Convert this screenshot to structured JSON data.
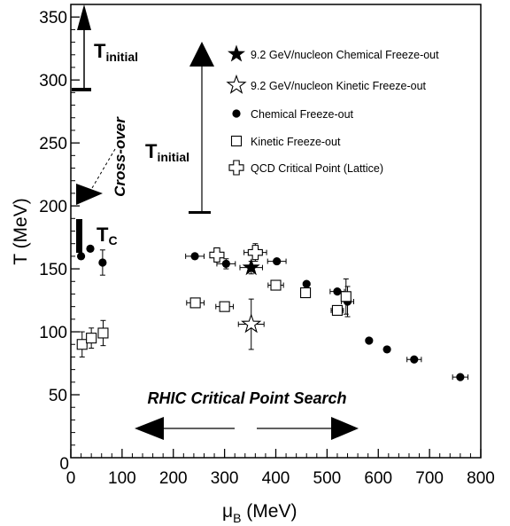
{
  "chart_data": {
    "type": "scatter",
    "xlabel": {
      "main": "μ",
      "sub": "B",
      "unit": " (MeV)"
    },
    "ylabel": "T (MeV)",
    "xlim": [
      0,
      800
    ],
    "ylim": [
      0,
      360
    ],
    "xticks": [
      "0",
      "100",
      "200",
      "300",
      "400",
      "500",
      "600",
      "700",
      "800"
    ],
    "yticks": [
      "50",
      "100",
      "150",
      "200",
      "250",
      "300",
      "350"
    ],
    "y_zero_label": "0",
    "legend": [
      {
        "label": "9.2 GeV/nucleon Chemical Freeze-out",
        "marker": "filled-star"
      },
      {
        "label": "9.2 GeV/nucleon Kinetic Freeze-out",
        "marker": "open-star"
      },
      {
        "label": "Chemical Freeze-out",
        "marker": "filled-circle"
      },
      {
        "label": "Kinetic Freeze-out",
        "marker": "open-square"
      },
      {
        "label": "QCD Critical Point (Lattice)",
        "marker": "open-cross"
      }
    ],
    "series": [
      {
        "name": "Chemical Freeze-out",
        "marker": "filled-circle",
        "points": [
          {
            "x": 20,
            "y": 160,
            "xerr": 5,
            "yerr": 0
          },
          {
            "x": 38,
            "y": 166,
            "xerr": 0,
            "yerr": 0
          },
          {
            "x": 62,
            "y": 155,
            "xerr": 0,
            "yerr": 10
          },
          {
            "x": 242,
            "y": 160,
            "xerr": 18,
            "yerr": 0
          },
          {
            "x": 303,
            "y": 154,
            "xerr": 18,
            "yerr": 4
          },
          {
            "x": 402,
            "y": 156,
            "xerr": 18,
            "yerr": 0
          },
          {
            "x": 460,
            "y": 138,
            "xerr": 0,
            "yerr": 0
          },
          {
            "x": 520,
            "y": 132,
            "xerr": 14,
            "yerr": 0
          },
          {
            "x": 540,
            "y": 124,
            "xerr": 12,
            "yerr": 12
          },
          {
            "x": 582,
            "y": 93,
            "xerr": 0,
            "yerr": 0
          },
          {
            "x": 617,
            "y": 86,
            "xerr": 0,
            "yerr": 0
          },
          {
            "x": 670,
            "y": 78,
            "xerr": 14,
            "yerr": 0
          },
          {
            "x": 760,
            "y": 64,
            "xerr": 15,
            "yerr": 0
          }
        ]
      },
      {
        "name": "Kinetic Freeze-out",
        "marker": "open-square",
        "points": [
          {
            "x": 22,
            "y": 90,
            "xerr": 0,
            "yerr": 10
          },
          {
            "x": 40,
            "y": 95,
            "xerr": 0,
            "yerr": 8
          },
          {
            "x": 63,
            "y": 99,
            "xerr": 0,
            "yerr": 10
          },
          {
            "x": 243,
            "y": 123,
            "xerr": 17,
            "yerr": 0
          },
          {
            "x": 300,
            "y": 120,
            "xerr": 17,
            "yerr": 0
          },
          {
            "x": 400,
            "y": 137,
            "xerr": 15,
            "yerr": 0
          },
          {
            "x": 458,
            "y": 131,
            "xerr": 0,
            "yerr": 0
          },
          {
            "x": 520,
            "y": 117,
            "xerr": 12,
            "yerr": 0
          },
          {
            "x": 537,
            "y": 128,
            "xerr": 0,
            "yerr": 14
          }
        ]
      },
      {
        "name": "9.2 GeV/nucleon Chemical Freeze-out",
        "marker": "filled-star",
        "points": [
          {
            "x": 352,
            "y": 151,
            "xerr": 22,
            "yerr": 5
          }
        ]
      },
      {
        "name": "9.2 GeV/nucleon Kinetic Freeze-out",
        "marker": "open-star",
        "points": [
          {
            "x": 352,
            "y": 106,
            "xerr": 25,
            "yerr": 20
          }
        ]
      },
      {
        "name": "QCD Critical Point (Lattice)",
        "marker": "open-cross",
        "points": [
          {
            "x": 285,
            "y": 161,
            "xerr": 0,
            "yerr": 0
          },
          {
            "x": 360,
            "y": 163,
            "xerr": 22,
            "yerr": 7
          }
        ]
      }
    ],
    "annotations": {
      "t_initial_1": "T",
      "t_initial_1_sub": "initial",
      "t_initial_2": "T",
      "t_initial_2_sub": "initial",
      "crossover": "Cross-over",
      "tc": "T",
      "tc_sub": "C",
      "rhic": "RHIC Critical Point Search"
    }
  }
}
